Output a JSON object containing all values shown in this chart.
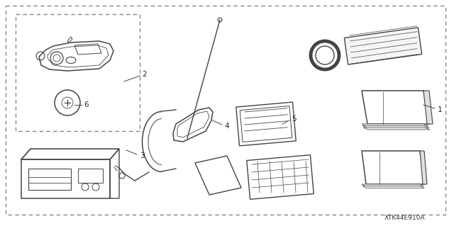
{
  "background_color": "#ffffff",
  "line_color": "#444444",
  "part_number_text": "XTK44E910A",
  "fig_width": 6.4,
  "fig_height": 3.19,
  "dpi": 100
}
